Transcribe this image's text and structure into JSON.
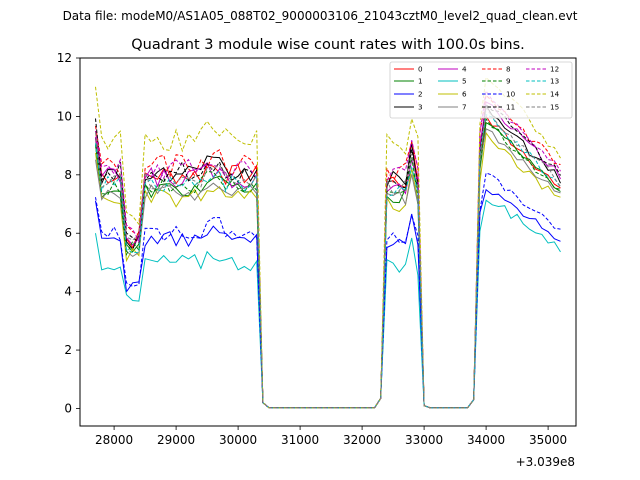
{
  "chart_data": {
    "type": "line",
    "suptitle": "Data file: modeM0/AS1A05_088T02_9000003106_21043cztM0_level2_quad_clean.evt",
    "title": "Quadrant 3 module wise count rates with 100.0s bins.",
    "xlabel": "",
    "ylabel": "",
    "x_offset_label": "+3.039e8",
    "xlim": [
      27450,
      35450
    ],
    "ylim": [
      -0.6,
      12
    ],
    "xticks": [
      28000,
      29000,
      30000,
      31000,
      32000,
      33000,
      34000,
      35000
    ],
    "xtick_labels": [
      "28000",
      "29000",
      "30000",
      "31000",
      "32000",
      "33000",
      "34000",
      "35000"
    ],
    "yticks": [
      0,
      2,
      4,
      6,
      8,
      10,
      12
    ],
    "ytick_labels": [
      "0",
      "2",
      "4",
      "6",
      "8",
      "10",
      "12"
    ],
    "grid": false,
    "legend": {
      "location": "upper-right",
      "columns": 4
    },
    "segments": [
      {
        "start": 27700,
        "end": 30400
      },
      {
        "start": 32300,
        "end": 33000
      },
      {
        "start": 33800,
        "end": 35200
      }
    ],
    "x_step": 100,
    "series": [
      {
        "name": "0",
        "color": "#ff0000",
        "style": "solid",
        "base": 8.0,
        "post": 8.5,
        "wobble": 0.35
      },
      {
        "name": "1",
        "color": "#008000",
        "style": "solid",
        "base": 7.5,
        "post": 8.4,
        "wobble": 0.3
      },
      {
        "name": "2",
        "color": "#0000ff",
        "style": "solid",
        "base": 5.8,
        "post": 6.5,
        "wobble": 0.25
      },
      {
        "name": "3",
        "color": "#000000",
        "style": "solid",
        "base": 8.0,
        "post": 8.8,
        "wobble": 0.35
      },
      {
        "name": "4",
        "color": "#bf00bf",
        "style": "solid",
        "base": 7.9,
        "post": 9.0,
        "wobble": 0.35
      },
      {
        "name": "5",
        "color": "#00bfbf",
        "style": "solid",
        "base": 5.0,
        "post": 6.2,
        "wobble": 0.3
      },
      {
        "name": "6",
        "color": "#bfbf00",
        "style": "solid",
        "base": 7.2,
        "post": 8.0,
        "wobble": 0.3
      },
      {
        "name": "7",
        "color": "#808080",
        "style": "solid",
        "base": 7.4,
        "post": 8.2,
        "wobble": 0.3
      },
      {
        "name": "8",
        "color": "#ff0000",
        "style": "dashed",
        "base": 8.3,
        "post": 9.3,
        "wobble": 0.4
      },
      {
        "name": "9",
        "color": "#008000",
        "style": "dashed",
        "base": 7.6,
        "post": 8.4,
        "wobble": 0.3
      },
      {
        "name": "10",
        "color": "#0000ff",
        "style": "dashed",
        "base": 6.0,
        "post": 6.9,
        "wobble": 0.25
      },
      {
        "name": "11",
        "color": "#000000",
        "style": "dashed",
        "base": 8.1,
        "post": 9.0,
        "wobble": 0.35
      },
      {
        "name": "12",
        "color": "#bf00bf",
        "style": "dashed",
        "base": 8.2,
        "post": 9.2,
        "wobble": 0.35
      },
      {
        "name": "13",
        "color": "#00bfbf",
        "style": "dashed",
        "base": 7.7,
        "post": 8.6,
        "wobble": 0.3
      },
      {
        "name": "14",
        "color": "#bfbf00",
        "style": "dashed",
        "base": 9.2,
        "post": 9.8,
        "wobble": 0.4
      },
      {
        "name": "15",
        "color": "#808080",
        "style": "dashed",
        "base": 7.8,
        "post": 8.7,
        "wobble": 0.3
      }
    ]
  }
}
